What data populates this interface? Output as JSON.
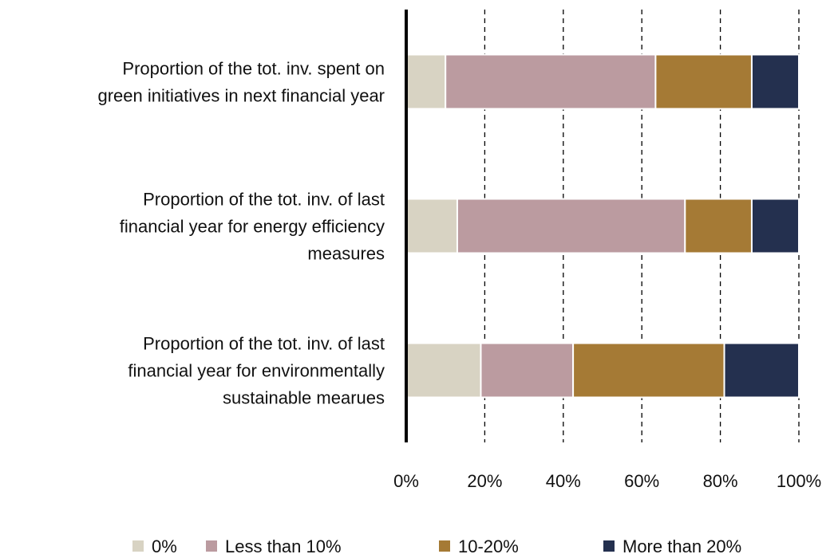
{
  "chart_data": {
    "type": "stacked_bar_horizontal",
    "categories": [
      "Proportion of the tot. inv. spent on\ngreen initiatives in next financial year",
      "Proportion of the tot. inv. of last\nfinancial year for energy efficiency\nmeasures",
      "Proportion of the tot. inv. of last\nfinancial year for environmentally\nsustainable mearues"
    ],
    "series": [
      {
        "name": "0%",
        "color": "#d8d3c3",
        "values": [
          10,
          13,
          19
        ]
      },
      {
        "name": "Less than 10%",
        "color": "#bb9ba0",
        "values": [
          53.5,
          58,
          23.5
        ]
      },
      {
        "name": "10-20%",
        "color": "#a57a35",
        "values": [
          24.5,
          17,
          38.5
        ]
      },
      {
        "name": "More than 20%",
        "color": "#24304f",
        "values": [
          12,
          12,
          19
        ]
      }
    ],
    "xlim": [
      0,
      100
    ],
    "xticks": [
      {
        "value": 0,
        "label": "0%"
      },
      {
        "value": 20,
        "label": "20%"
      },
      {
        "value": 40,
        "label": "40%"
      },
      {
        "value": 60,
        "label": "60%"
      },
      {
        "value": 80,
        "label": "80%"
      },
      {
        "value": 100,
        "label": "100%"
      }
    ],
    "grid": true,
    "legend": "bottom"
  }
}
